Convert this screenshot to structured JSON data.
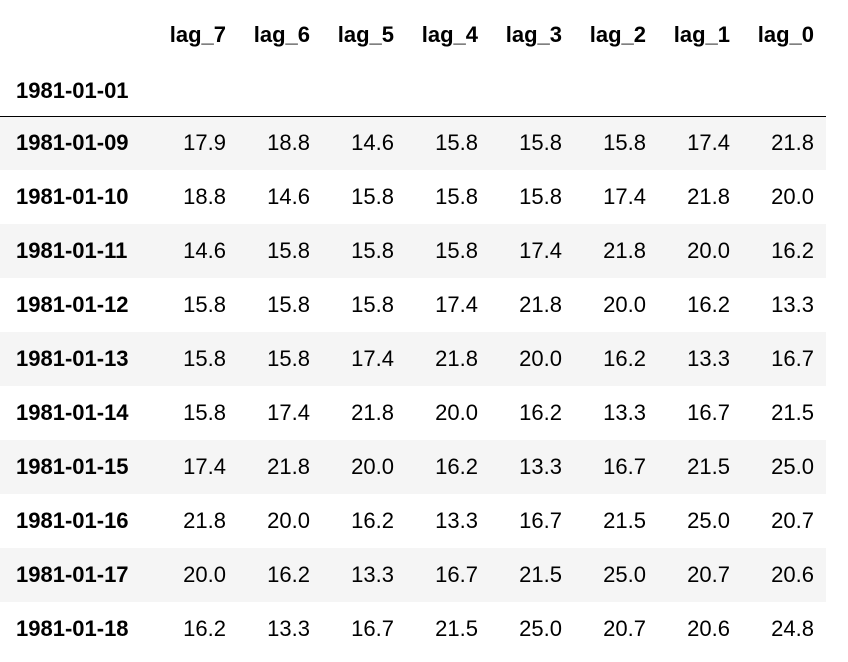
{
  "table": {
    "columns": [
      "lag_7",
      "lag_6",
      "lag_5",
      "lag_4",
      "lag_3",
      "lag_2",
      "lag_1",
      "lag_0"
    ],
    "index_name": "1981-01-01",
    "rows": [
      {
        "index": "1981-01-09",
        "values": [
          "17.9",
          "18.8",
          "14.6",
          "15.8",
          "15.8",
          "15.8",
          "17.4",
          "21.8"
        ]
      },
      {
        "index": "1981-01-10",
        "values": [
          "18.8",
          "14.6",
          "15.8",
          "15.8",
          "15.8",
          "17.4",
          "21.8",
          "20.0"
        ]
      },
      {
        "index": "1981-01-11",
        "values": [
          "14.6",
          "15.8",
          "15.8",
          "15.8",
          "17.4",
          "21.8",
          "20.0",
          "16.2"
        ]
      },
      {
        "index": "1981-01-12",
        "values": [
          "15.8",
          "15.8",
          "15.8",
          "17.4",
          "21.8",
          "20.0",
          "16.2",
          "13.3"
        ]
      },
      {
        "index": "1981-01-13",
        "values": [
          "15.8",
          "15.8",
          "17.4",
          "21.8",
          "20.0",
          "16.2",
          "13.3",
          "16.7"
        ]
      },
      {
        "index": "1981-01-14",
        "values": [
          "15.8",
          "17.4",
          "21.8",
          "20.0",
          "16.2",
          "13.3",
          "16.7",
          "21.5"
        ]
      },
      {
        "index": "1981-01-15",
        "values": [
          "17.4",
          "21.8",
          "20.0",
          "16.2",
          "13.3",
          "16.7",
          "21.5",
          "25.0"
        ]
      },
      {
        "index": "1981-01-16",
        "values": [
          "21.8",
          "20.0",
          "16.2",
          "13.3",
          "16.7",
          "21.5",
          "25.0",
          "20.7"
        ]
      },
      {
        "index": "1981-01-17",
        "values": [
          "20.0",
          "16.2",
          "13.3",
          "16.7",
          "21.5",
          "25.0",
          "20.7",
          "20.6"
        ]
      },
      {
        "index": "1981-01-18",
        "values": [
          "16.2",
          "13.3",
          "16.7",
          "21.5",
          "25.0",
          "20.7",
          "20.6",
          "24.8"
        ]
      }
    ],
    "colors": {
      "stripe": "#f5f5f5",
      "background": "#ffffff",
      "text": "#000000",
      "rule": "#000000"
    }
  }
}
